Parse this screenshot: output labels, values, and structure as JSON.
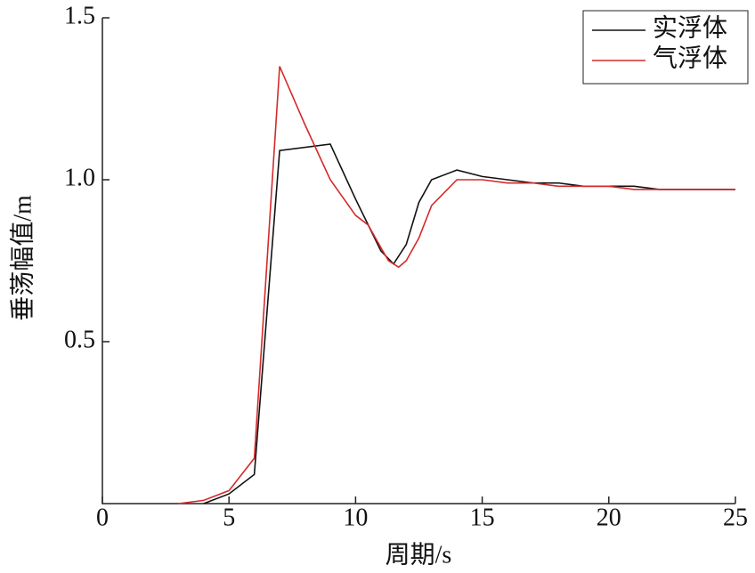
{
  "chart_data": {
    "type": "line",
    "xlabel": "周期/s",
    "ylabel": "垂荡幅值/m",
    "xlim": [
      0,
      25
    ],
    "xticks": [
      0,
      5,
      10,
      15,
      20,
      25
    ],
    "ylim": [
      0,
      1.5
    ],
    "yticks": [
      0.5,
      {
        "value": 1,
        "label": "1.0"
      },
      1.5
    ],
    "legend": "upper right",
    "series": [
      {
        "name": "实浮体",
        "color": "#111111",
        "x": [
          4,
          5,
          6,
          7,
          9,
          10,
          11,
          11.5,
          12,
          12.5,
          13,
          14,
          15,
          16,
          17,
          18,
          19,
          20,
          21,
          22,
          25
        ],
        "values": [
          0,
          0.03,
          0.09,
          1.09,
          1.11,
          0.94,
          0.78,
          0.74,
          0.8,
          0.93,
          1.0,
          1.03,
          1.01,
          1.0,
          0.99,
          0.99,
          0.98,
          0.98,
          0.98,
          0.97,
          0.97
        ]
      },
      {
        "name": "气浮体",
        "color": "#d42a2a",
        "x": [
          3,
          4,
          5,
          6,
          7,
          8,
          9,
          10,
          10.5,
          11,
          11.3,
          11.7,
          12,
          12.5,
          13,
          14,
          15,
          16,
          17,
          18,
          19,
          20,
          21,
          22,
          25
        ],
        "values": [
          0,
          0.01,
          0.04,
          0.14,
          1.35,
          1.17,
          1.0,
          0.89,
          0.86,
          0.79,
          0.75,
          0.73,
          0.75,
          0.82,
          0.92,
          1.0,
          1.0,
          0.99,
          0.99,
          0.98,
          0.98,
          0.98,
          0.97,
          0.97,
          0.97
        ]
      }
    ]
  }
}
